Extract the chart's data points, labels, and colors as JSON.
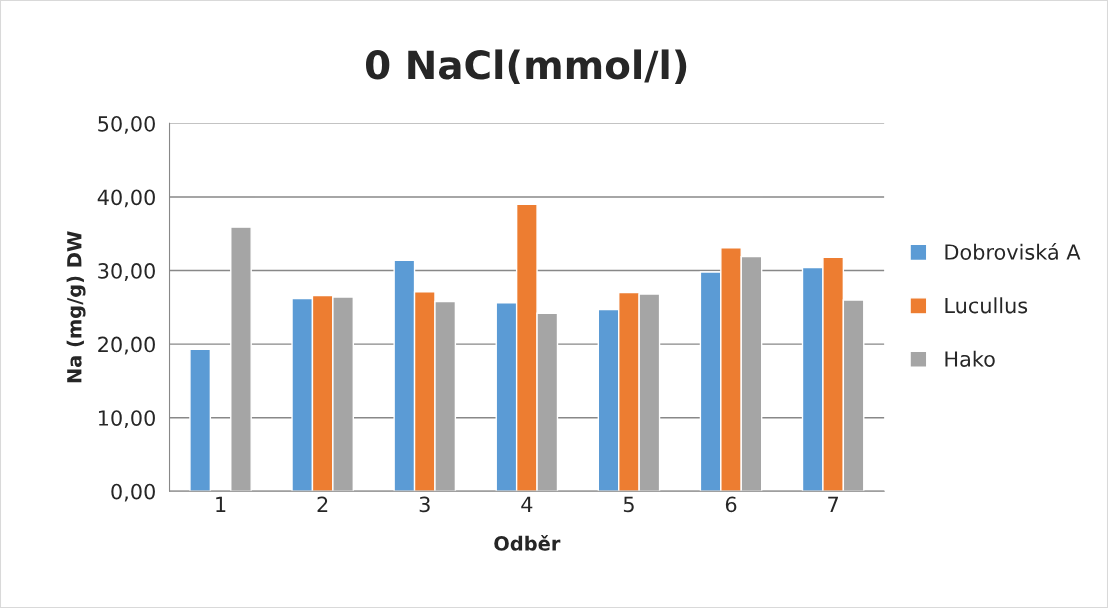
{
  "chart_data": {
    "type": "bar",
    "title": "0 NaCl(mmol/l)",
    "xlabel": "Odběr",
    "ylabel": "Na (mg/g) DW",
    "categories": [
      "1",
      "2",
      "3",
      "4",
      "5",
      "6",
      "7"
    ],
    "series": [
      {
        "name": "Dobroviská A",
        "color": "#5b9bd5",
        "values": [
          19.3,
          26.2,
          31.4,
          25.6,
          24.7,
          29.8,
          30.4
        ]
      },
      {
        "name": "Lucullus",
        "color": "#ed7d31",
        "values": [
          null,
          26.6,
          27.1,
          39.0,
          27.0,
          33.1,
          31.8
        ]
      },
      {
        "name": "Hako",
        "color": "#a5a5a5",
        "values": [
          35.9,
          26.4,
          25.8,
          24.2,
          26.8,
          31.9,
          26.0
        ]
      }
    ],
    "ylim": [
      0,
      50
    ],
    "yticks": [
      {
        "value": 0,
        "label": "0,00"
      },
      {
        "value": 10,
        "label": "10,00"
      },
      {
        "value": 20,
        "label": "20,00"
      },
      {
        "value": 30,
        "label": "30,00"
      },
      {
        "value": 40,
        "label": "40,00"
      },
      {
        "value": 50,
        "label": "50,00"
      }
    ],
    "grid": "y",
    "legend": "right"
  }
}
